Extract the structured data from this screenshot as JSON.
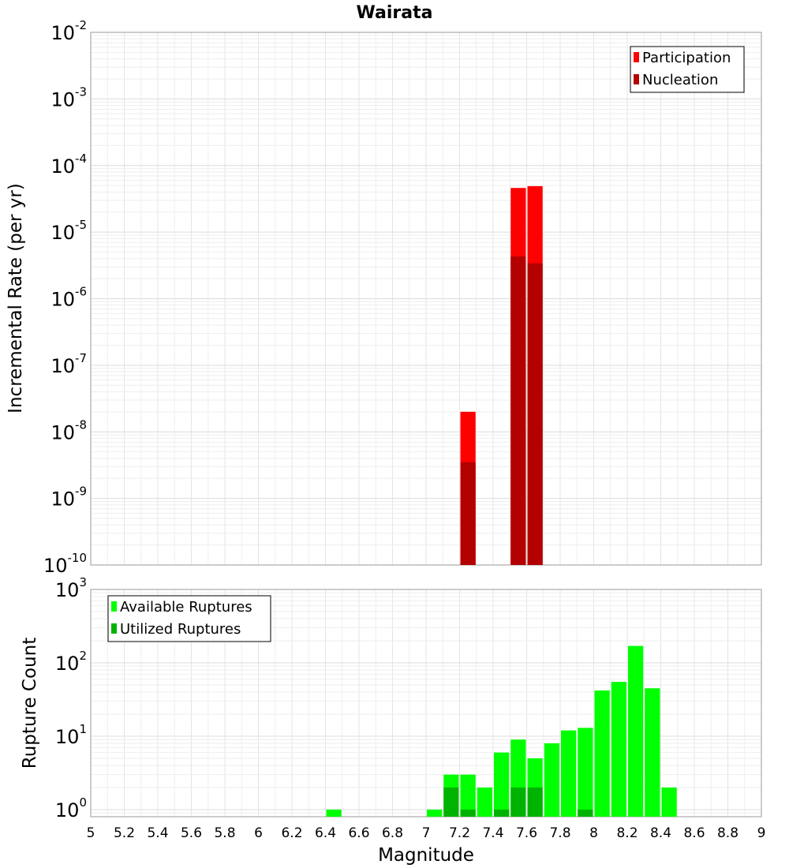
{
  "chart_data": [
    {
      "type": "bar",
      "title": "Wairata",
      "xlabel": "",
      "ylabel": "Incremental Rate (per yr)",
      "y_scale": "log",
      "ylim": [
        1e-10,
        0.01
      ],
      "xlim": [
        5,
        9
      ],
      "y_ticks": [
        {
          "base": "10",
          "exp": "-2"
        },
        {
          "base": "10",
          "exp": "-3"
        },
        {
          "base": "10",
          "exp": "-4"
        },
        {
          "base": "10",
          "exp": "-5"
        },
        {
          "base": "10",
          "exp": "-6"
        },
        {
          "base": "10",
          "exp": "-7"
        },
        {
          "base": "10",
          "exp": "-8"
        },
        {
          "base": "10",
          "exp": "-9"
        },
        {
          "base": "10",
          "exp": "-10"
        }
      ],
      "legend_position": "top-right",
      "series": [
        {
          "name": "Participation",
          "color": "#ff0000",
          "points": [
            {
              "x": 7.25,
              "y": 2e-08
            },
            {
              "x": 7.55,
              "y": 4.6e-05
            },
            {
              "x": 7.65,
              "y": 4.9e-05
            }
          ]
        },
        {
          "name": "Nucleation",
          "color": "#b30000",
          "points": [
            {
              "x": 7.25,
              "y": 3.5e-09
            },
            {
              "x": 7.55,
              "y": 4.3e-06
            },
            {
              "x": 7.65,
              "y": 3.4e-06
            }
          ]
        }
      ]
    },
    {
      "type": "bar",
      "title": "",
      "xlabel": "Magnitude",
      "ylabel": "Rupture Count",
      "y_scale": "log",
      "ylim": [
        0.8,
        1000
      ],
      "xlim": [
        5,
        9
      ],
      "x_ticks": [
        "5",
        "5.2",
        "5.4",
        "5.6",
        "5.8",
        "6",
        "6.2",
        "6.4",
        "6.6",
        "6.8",
        "7",
        "7.2",
        "7.4",
        "7.6",
        "7.8",
        "8",
        "8.2",
        "8.4",
        "8.6",
        "8.8",
        "9"
      ],
      "y_ticks": [
        {
          "base": "10",
          "exp": "3"
        },
        {
          "base": "10",
          "exp": "2"
        },
        {
          "base": "10",
          "exp": "1"
        },
        {
          "base": "10",
          "exp": "0"
        }
      ],
      "legend_position": "top-left",
      "series": [
        {
          "name": "Available Ruptures",
          "color": "#00ff00",
          "points": [
            {
              "x": 6.45,
              "y": 1
            },
            {
              "x": 7.05,
              "y": 1
            },
            {
              "x": 7.15,
              "y": 3
            },
            {
              "x": 7.25,
              "y": 3
            },
            {
              "x": 7.35,
              "y": 2
            },
            {
              "x": 7.45,
              "y": 6
            },
            {
              "x": 7.55,
              "y": 9
            },
            {
              "x": 7.65,
              "y": 5
            },
            {
              "x": 7.75,
              "y": 8
            },
            {
              "x": 7.85,
              "y": 12
            },
            {
              "x": 7.95,
              "y": 13
            },
            {
              "x": 8.05,
              "y": 42
            },
            {
              "x": 8.15,
              "y": 55
            },
            {
              "x": 8.25,
              "y": 170
            },
            {
              "x": 8.35,
              "y": 45
            },
            {
              "x": 8.45,
              "y": 2
            }
          ]
        },
        {
          "name": "Utilized Ruptures",
          "color": "#00b300",
          "points": [
            {
              "x": 7.15,
              "y": 2
            },
            {
              "x": 7.25,
              "y": 1
            },
            {
              "x": 7.45,
              "y": 1
            },
            {
              "x": 7.55,
              "y": 2
            },
            {
              "x": 7.65,
              "y": 2
            },
            {
              "x": 7.95,
              "y": 1
            }
          ]
        }
      ]
    }
  ]
}
